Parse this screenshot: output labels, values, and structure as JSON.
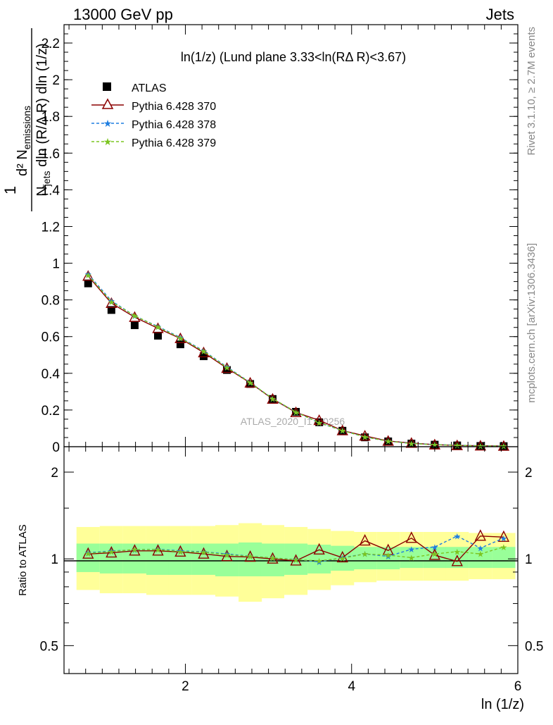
{
  "header": {
    "left": "13000 GeV pp",
    "right": "Jets"
  },
  "side_labels": {
    "rivet": "Rivet 3.1.10, ≥ 2.7M events",
    "mcplots": "mcplots.cern.ch [arXiv:1306.3436]"
  },
  "watermark": "ATLAS_2020_I1790256",
  "chart_data": [
    {
      "type": "scatter",
      "title": "ln(1/z) (Lund plane 3.33<ln(RΔ R)<3.67)",
      "xlabel": "ln (1/z)",
      "ylabel_parts": {
        "one": "1",
        "numerator": "d² N",
        "numerator_sub": "emissions",
        "denominator": "N",
        "denominator_sub": "jets",
        "denominator_rest": " dln (R/Δ R) dln (1/z)"
      },
      "xlim": [
        0.54,
        6.0
      ],
      "ylim": [
        0,
        2.3
      ],
      "xticks": [
        2,
        4,
        6
      ],
      "yticks": [
        0,
        0.2,
        0.4,
        0.6,
        0.8,
        1,
        1.2,
        1.4,
        1.6,
        1.8,
        2,
        2.2
      ],
      "ytick_labels": [
        "0",
        "0.2",
        "0.4",
        "0.6",
        "0.8",
        "1",
        "1.2",
        "1.4",
        "1.6",
        "1.8",
        "2",
        "2.2"
      ],
      "x": [
        0.83,
        1.11,
        1.39,
        1.67,
        1.94,
        2.22,
        2.5,
        2.78,
        3.05,
        3.33,
        3.61,
        3.89,
        4.16,
        4.44,
        4.72,
        5.0,
        5.27,
        5.55,
        5.83
      ],
      "series": [
        {
          "name": "ATLAS",
          "marker": "square",
          "color": "#000000",
          "values": [
            0.89,
            0.745,
            0.662,
            0.605,
            0.558,
            0.493,
            0.418,
            0.342,
            0.26,
            0.19,
            0.133,
            0.087,
            0.051,
            0.029,
            0.017,
            0.011,
            0.007,
            0.004,
            0.003
          ]
        },
        {
          "name": "Pythia 6.428 370",
          "marker": "triangle",
          "line": "solid",
          "color": "#8b0000",
          "values": [
            0.93,
            0.782,
            0.706,
            0.645,
            0.59,
            0.513,
            0.428,
            0.348,
            0.26,
            0.187,
            0.144,
            0.088,
            0.059,
            0.031,
            0.02,
            0.011,
            0.007,
            0.005,
            0.0035
          ]
        },
        {
          "name": "Pythia 6.428 378",
          "marker": "star",
          "line": "dashed",
          "color": "#1f7ee0",
          "values": [
            0.94,
            0.795,
            0.713,
            0.655,
            0.595,
            0.522,
            0.435,
            0.35,
            0.262,
            0.189,
            0.13,
            0.088,
            0.053,
            0.03,
            0.018,
            0.0115,
            0.0085,
            0.0045,
            0.0036
          ]
        },
        {
          "name": "Pythia 6.428 379",
          "marker": "star",
          "line": "dashed",
          "color": "#7cc520",
          "values": [
            0.935,
            0.79,
            0.714,
            0.652,
            0.592,
            0.52,
            0.432,
            0.349,
            0.262,
            0.189,
            0.131,
            0.088,
            0.053,
            0.03,
            0.017,
            0.011,
            0.0073,
            0.0043,
            0.0034
          ]
        }
      ],
      "legend_placement": "top-left"
    },
    {
      "type": "scatter",
      "title": "",
      "ylabel": "Ratio to ATLAS",
      "xlim": [
        0.54,
        6.0
      ],
      "ylim": [
        0.4,
        2.45
      ],
      "ytick_labels": [
        "0.5",
        "1",
        "2"
      ],
      "yticks": [
        0.5,
        1,
        2
      ],
      "reference_line": 1,
      "bands": [
        {
          "name": "yellow",
          "color": "#ffff99",
          "lo": [
            0.78,
            0.76,
            0.76,
            0.75,
            0.75,
            0.75,
            0.74,
            0.71,
            0.73,
            0.75,
            0.78,
            0.81,
            0.83,
            0.84,
            0.84,
            0.84,
            0.84,
            0.85,
            0.85
          ],
          "hi": [
            1.29,
            1.3,
            1.3,
            1.3,
            1.3,
            1.3,
            1.31,
            1.33,
            1.31,
            1.29,
            1.27,
            1.25,
            1.24,
            1.24,
            1.24,
            1.24,
            1.24,
            1.23,
            1.23
          ]
        },
        {
          "name": "green",
          "color": "#99ff99",
          "lo": [
            0.9,
            0.89,
            0.89,
            0.88,
            0.88,
            0.88,
            0.87,
            0.87,
            0.87,
            0.88,
            0.89,
            0.91,
            0.92,
            0.92,
            0.93,
            0.93,
            0.93,
            0.93,
            0.93
          ],
          "hi": [
            1.13,
            1.13,
            1.13,
            1.13,
            1.13,
            1.13,
            1.13,
            1.14,
            1.13,
            1.13,
            1.12,
            1.11,
            1.1,
            1.1,
            1.1,
            1.1,
            1.1,
            1.1,
            1.1
          ]
        }
      ],
      "series": [
        {
          "name": "Pythia 6.428 370",
          "color": "#8b0000",
          "line": "solid",
          "marker": "triangle",
          "values": [
            1.04,
            1.05,
            1.066,
            1.066,
            1.057,
            1.04,
            1.02,
            1.015,
            1.0,
            0.985,
            1.075,
            1.01,
            1.155,
            1.07,
            1.18,
            1.03,
            0.98,
            1.2,
            1.19
          ]
        },
        {
          "name": "Pythia 6.428 378",
          "color": "#1f7ee0",
          "line": "dashed",
          "marker": "star",
          "values": [
            1.05,
            1.065,
            1.075,
            1.08,
            1.066,
            1.058,
            1.04,
            1.022,
            1.008,
            0.995,
            0.976,
            1.01,
            1.04,
            1.02,
            1.08,
            1.1,
            1.2,
            1.09,
            1.18
          ]
        },
        {
          "name": "Pythia 6.428 379",
          "color": "#7cc520",
          "line": "dashed",
          "marker": "star",
          "values": [
            1.045,
            1.06,
            1.078,
            1.077,
            1.06,
            1.055,
            1.034,
            1.02,
            1.008,
            0.993,
            0.985,
            1.005,
            1.04,
            1.03,
            1.01,
            1.04,
            1.06,
            1.04,
            1.1
          ]
        }
      ]
    }
  ]
}
